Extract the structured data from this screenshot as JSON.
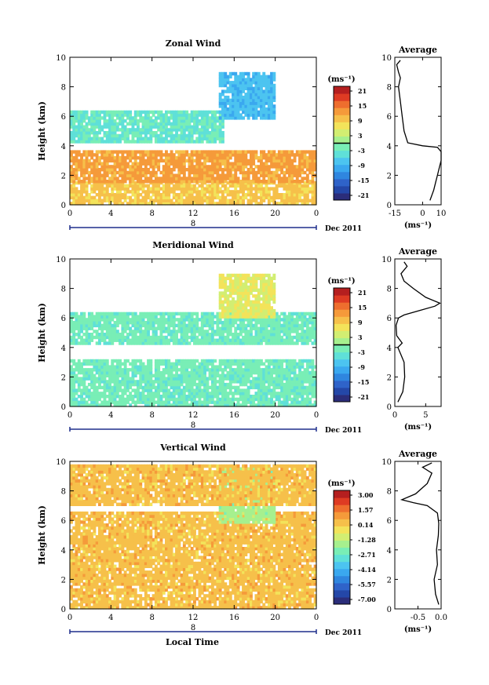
{
  "page": {
    "xlabel_bottom": "Local Time"
  },
  "colors": {
    "palette": [
      "#2b2d7a",
      "#2447a8",
      "#2f63c9",
      "#2f86df",
      "#3aa8ef",
      "#4cc4f0",
      "#5fe0d8",
      "#79eeb6",
      "#a6f08e",
      "#d2ee72",
      "#f3e35a",
      "#f6c04a",
      "#f59a3a",
      "#ee6e2e",
      "#de3b23",
      "#b51f1f"
    ],
    "tick_color": "#1f2f8c"
  },
  "chart_data": [
    {
      "id": "zonal",
      "type": "heatmap",
      "title": "Zonal Wind",
      "ylabel": "Height (km)",
      "xlim": [
        0,
        24
      ],
      "ylim": [
        0,
        10
      ],
      "xticks": [
        "0",
        "4",
        "8",
        "12",
        "16",
        "20",
        "0"
      ],
      "xtick_values": [
        0,
        4,
        8,
        12,
        16,
        20,
        24
      ],
      "yticks": [
        "0",
        "2",
        "4",
        "6",
        "8",
        "10"
      ],
      "date_tick_label": "8",
      "date_label": "Dec 2011",
      "colorbar": {
        "unit": "(ms⁻¹)",
        "labels": [
          "21",
          "15",
          "9",
          "3",
          "-3",
          "-9",
          "-15",
          "-21"
        ],
        "range": [
          -24,
          24
        ],
        "contour": 0
      },
      "layers": [
        {
          "t0": 0,
          "t1": 24,
          "h0": 0,
          "h1": 1.5,
          "value": 10
        },
        {
          "t0": 0,
          "t1": 24,
          "h0": 1.5,
          "h1": 3.6,
          "value": 13
        },
        {
          "t0": 0,
          "t1": 15,
          "h0": 4.2,
          "h1": 6.3,
          "value": -3
        },
        {
          "t0": 14.5,
          "t1": 20,
          "h0": 5.8,
          "h1": 9.0,
          "value": -8
        }
      ],
      "profile": {
        "title": "Average",
        "xlim": [
          -15,
          10
        ],
        "xticks": [
          "-15",
          "0",
          "10"
        ],
        "xtick_values": [
          -15,
          0,
          10
        ],
        "yticks": [
          "0",
          "2",
          "4",
          "6",
          "8",
          "10"
        ],
        "xlabel": "(ms⁻¹)",
        "x": [
          4,
          6,
          7,
          8,
          9,
          10,
          10,
          8,
          0,
          -8,
          -10,
          -11,
          -12,
          -13,
          -12,
          -13,
          -14,
          -12
        ],
        "y": [
          0.3,
          1,
          1.5,
          2,
          2.5,
          3,
          3.6,
          3.9,
          4.0,
          4.2,
          5,
          6,
          7,
          8,
          8.6,
          9,
          9.5,
          9.8
        ]
      }
    },
    {
      "id": "meridional",
      "type": "heatmap",
      "title": "Meridional Wind",
      "ylabel": "Height (km)",
      "xlim": [
        0,
        24
      ],
      "ylim": [
        0,
        10
      ],
      "xticks": [
        "0",
        "4",
        "8",
        "12",
        "16",
        "20",
        "0"
      ],
      "xtick_values": [
        0,
        4,
        8,
        12,
        16,
        20,
        24
      ],
      "yticks": [
        "0",
        "2",
        "4",
        "6",
        "8",
        "10"
      ],
      "date_tick_label": "8",
      "date_label": "Dec 2011",
      "colorbar": {
        "unit": "(ms⁻¹)",
        "labels": [
          "21",
          "15",
          "9",
          "3",
          "-3",
          "-9",
          "-15",
          "-21"
        ],
        "range": [
          -24,
          24
        ],
        "contour": 0
      },
      "layers": [
        {
          "t0": 0,
          "t1": 24,
          "h0": 0,
          "h1": 3.2,
          "value": -2
        },
        {
          "t0": 0,
          "t1": 24,
          "h0": 4.2,
          "h1": 6.3,
          "value": -2
        },
        {
          "t0": 14.5,
          "t1": 20,
          "h0": 6.0,
          "h1": 9.0,
          "value": 6
        }
      ],
      "profile": {
        "title": "Average",
        "xlim": [
          0,
          7.5
        ],
        "xticks": [
          "0",
          "5"
        ],
        "xtick_values": [
          0,
          5
        ],
        "yticks": [
          "0",
          "2",
          "4",
          "6",
          "8",
          "10"
        ],
        "xlabel": "(ms⁻¹)",
        "x": [
          0.5,
          1.3,
          1.6,
          1.5,
          1.0,
          0.5,
          1.2,
          0.3,
          0.2,
          0.6,
          1.5,
          4.0,
          6.5,
          7.3,
          5.0,
          3.0,
          1.5,
          1.0,
          2.0,
          1.5
        ],
        "y": [
          0.3,
          1,
          2,
          3,
          3.5,
          4.0,
          4.3,
          4.8,
          5.5,
          6.0,
          6.2,
          6.5,
          6.8,
          7.0,
          7.4,
          8.0,
          8.5,
          9.0,
          9.5,
          9.8
        ]
      }
    },
    {
      "id": "vertical",
      "type": "heatmap",
      "title": "Vertical Wind",
      "ylabel": "Height (km)",
      "xlim": [
        0,
        24
      ],
      "ylim": [
        0,
        10
      ],
      "xticks": [
        "0",
        "4",
        "8",
        "12",
        "16",
        "20",
        "0"
      ],
      "xtick_values": [
        0,
        4,
        8,
        12,
        16,
        20,
        24
      ],
      "yticks": [
        "0",
        "2",
        "4",
        "6",
        "8",
        "10"
      ],
      "date_tick_label": "8",
      "date_label": "Dec 2011",
      "colorbar": {
        "unit": "(ms⁻¹)",
        "labels": [
          "3.00",
          "1.57",
          "0.14",
          "-1.28",
          "-2.71",
          "-4.14",
          "-5.57",
          "-7.00"
        ],
        "range": [
          -7.7,
          3.7
        ],
        "contour": null
      },
      "layers": [
        {
          "t0": 0,
          "t1": 24,
          "h0": 0,
          "h1": 6.6,
          "value": 0.5
        },
        {
          "t0": 14.5,
          "t1": 20,
          "h0": 5.8,
          "h1": 9.5,
          "value": -1.6
        },
        {
          "t0": 0,
          "t1": 24,
          "h0": 7.0,
          "h1": 9.8,
          "value": 0.5
        }
      ],
      "profile": {
        "title": "Average",
        "xlim": [
          -1.0,
          0.0
        ],
        "xticks": [
          "-0.5",
          "0.0"
        ],
        "xtick_values": [
          -0.5,
          0.0
        ],
        "yticks": [
          "0",
          "2",
          "4",
          "6",
          "8",
          "10"
        ],
        "xlabel": "(ms⁻¹)",
        "x": [
          -0.05,
          -0.12,
          -0.15,
          -0.08,
          -0.1,
          -0.06,
          -0.05,
          -0.08,
          -0.3,
          -0.6,
          -0.85,
          -0.55,
          -0.3,
          -0.2,
          -0.4,
          -0.2
        ],
        "y": [
          0.3,
          1,
          2,
          3,
          4,
          5,
          5.8,
          6.5,
          7.0,
          7.2,
          7.4,
          7.8,
          8.5,
          9.2,
          9.6,
          9.9
        ]
      }
    }
  ]
}
